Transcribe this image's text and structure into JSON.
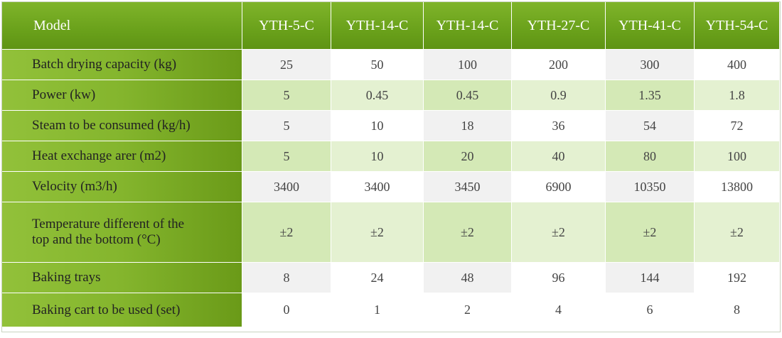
{
  "header": {
    "first": "Model",
    "models": [
      "YTH-5-C",
      "YTH-14-C",
      "YTH-14-C",
      "YTH-27-C",
      "YTH-41-C",
      "YTH-54-C"
    ]
  },
  "rows": [
    {
      "label": "Batch drying capacity (kg)",
      "values": [
        "25",
        "50",
        "100",
        "200",
        "300",
        "400"
      ]
    },
    {
      "label": "Power (kw)",
      "values": [
        "5",
        "0.45",
        "0.45",
        "0.9",
        "1.35",
        "1.8"
      ]
    },
    {
      "label": "Steam to be consumed (kg/h)",
      "values": [
        "5",
        "10",
        "18",
        "36",
        "54",
        "72"
      ]
    },
    {
      "label": "Heat exchange arer (m2)",
      "values": [
        "5",
        "10",
        "20",
        "40",
        "80",
        "100"
      ]
    },
    {
      "label": "Velocity (m3/h)",
      "values": [
        "3400",
        "3400",
        "3450",
        "6900",
        "10350",
        "13800"
      ]
    },
    {
      "label_line1": "Temperature different of the",
      "label_line2": "top and the bottom (°C)",
      "values": [
        "±2",
        "±2",
        "±2",
        "±2",
        "±2",
        "±2"
      ]
    },
    {
      "label": "Baking trays",
      "values": [
        "8",
        "24",
        "48",
        "96",
        "144",
        "192"
      ]
    },
    {
      "label": "Baking cart to be used (set)",
      "values": [
        "0",
        "1",
        "2",
        "4",
        "6",
        "8"
      ]
    }
  ],
  "colors": {
    "header_green": "#6aa11b",
    "label_green": "#84b52d",
    "row_grey": "#f1f1f1",
    "row_green": "#d4e9b6"
  }
}
